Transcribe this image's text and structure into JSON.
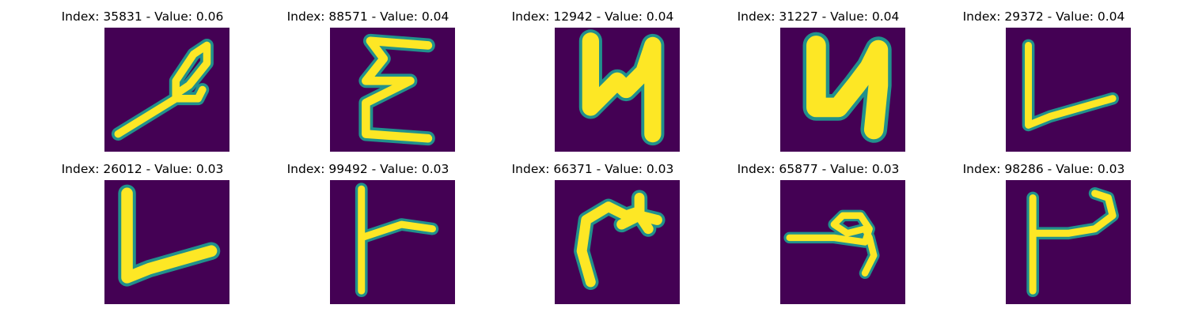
{
  "colors": {
    "background": "#440154",
    "stroke": "#fde725",
    "edge": "#21918c"
  },
  "panels": [
    {
      "title": "Index: 35831 - Value: 0.06",
      "glyph": "looped-diagonal-glyph"
    },
    {
      "title": "Index: 88571 - Value: 0.04",
      "glyph": "zigzag-epsilon-glyph"
    },
    {
      "title": "Index: 12942 - Value: 0.04",
      "glyph": "bold-n-glyph"
    },
    {
      "title": "Index: 31227 - Value: 0.04",
      "glyph": "bold-n-glyph-alt"
    },
    {
      "title": "Index: 29372 - Value: 0.04",
      "glyph": "l-shape-glyph"
    },
    {
      "title": "Index: 26012 - Value: 0.03",
      "glyph": "bold-l-shape-glyph"
    },
    {
      "title": "Index: 99492 - Value: 0.03",
      "glyph": "t-crossbar-glyph"
    },
    {
      "title": "Index: 66371 - Value: 0.03",
      "glyph": "curl-cross-glyph"
    },
    {
      "title": "Index: 65877 - Value: 0.03",
      "glyph": "horizontal-loop-glyph"
    },
    {
      "title": "Index: 98286 - Value: 0.03",
      "glyph": "t-hook-glyph"
    }
  ]
}
